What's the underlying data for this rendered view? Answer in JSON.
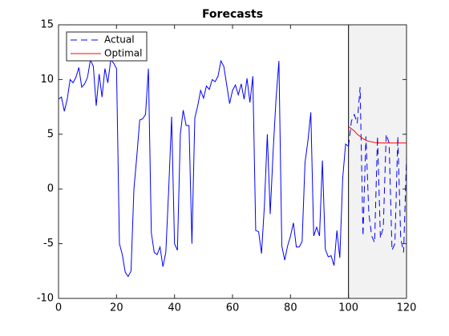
{
  "chart_data": {
    "type": "line",
    "title": "Forecasts",
    "x": [
      0,
      1,
      2,
      3,
      4,
      5,
      6,
      7,
      8,
      9,
      10,
      11,
      12,
      13,
      14,
      15,
      16,
      17,
      18,
      19,
      20,
      21,
      22,
      23,
      24,
      25,
      26,
      27,
      28,
      29,
      30,
      31,
      32,
      33,
      34,
      35,
      36,
      37,
      38,
      39,
      40,
      41,
      42,
      43,
      44,
      45,
      46,
      47,
      48,
      49,
      50,
      51,
      52,
      53,
      54,
      55,
      56,
      57,
      58,
      59,
      60,
      61,
      62,
      63,
      64,
      65,
      66,
      67,
      68,
      69,
      70,
      71,
      72,
      73,
      74,
      75,
      76,
      77,
      78,
      79,
      80,
      81,
      82,
      83,
      84,
      85,
      86,
      87,
      88,
      89,
      90,
      91,
      92,
      93,
      94,
      95,
      96,
      97,
      98,
      99,
      100,
      101,
      102,
      103,
      104,
      105,
      106,
      107,
      108,
      109,
      110,
      111,
      112,
      113,
      114,
      115,
      116,
      117,
      118,
      119,
      120
    ],
    "series": [
      {
        "name": "Actual",
        "color": "#0000ff",
        "dash": "8,5",
        "values": [
          8.2,
          8.4,
          7.1,
          8.2,
          10,
          9.7,
          10.2,
          11.1,
          9.3,
          9.6,
          10.2,
          11.8,
          11.2,
          7.6,
          10.5,
          8.4,
          11,
          9.7,
          11.8,
          11.5,
          11,
          -5,
          -6,
          -7.6,
          -8,
          -7.5,
          0,
          3,
          6.3,
          6.4,
          6.8,
          11,
          -4,
          -5.8,
          -6,
          -5.3,
          -7.1,
          -5.8,
          0,
          6.6,
          -5,
          -5.6,
          5,
          7.2,
          5.8,
          5.8,
          -5,
          6.5,
          7.6,
          9,
          8.3,
          9.4,
          9.1,
          10,
          9.8,
          10.3,
          11.7,
          11.2,
          9.5,
          7.8,
          9,
          9.5,
          8.6,
          9.6,
          8.2,
          10.1,
          7.9,
          10.3,
          -3.8,
          -3.9,
          -5.9,
          -1.5,
          5,
          -2.3,
          3.4,
          8.2,
          11.7,
          -5.2,
          -6.5,
          -5.2,
          -4.3,
          -3.1,
          -5.3,
          -5.3,
          -4.8,
          2.4,
          4.4,
          7,
          -4.3,
          -3.5,
          -4.3,
          2.6,
          -5.5,
          -6.2,
          -6.1,
          -7,
          -3.8,
          -6.3,
          1,
          4.1,
          3.9,
          6.2,
          6.8,
          6,
          9.3,
          -4.3,
          4.8,
          -2.2,
          -4.3,
          -4.9,
          4.8,
          -4.5,
          -3.5,
          5,
          4.2,
          -5.6,
          -5,
          4.8,
          -4.5,
          -5.8,
          2.9
        ]
      },
      {
        "name": "Optimal",
        "color": "#ff0000",
        "x": [
          100,
          101,
          102,
          103,
          104,
          105,
          106,
          107,
          108,
          109,
          110,
          111,
          112,
          113,
          114,
          115,
          116,
          117,
          118,
          119,
          120
        ],
        "values": [
          5.7,
          5.5,
          5.3,
          5.0,
          4.8,
          4.6,
          4.45,
          4.35,
          4.3,
          4.25,
          4.22,
          4.2,
          4.2,
          4.2,
          4.2,
          4.2,
          4.2,
          4.2,
          4.2,
          4.2,
          4.2
        ]
      }
    ],
    "shaded_region": [
      100,
      120
    ],
    "shade_color": "#f2f2f2",
    "xlim": [
      0,
      120
    ],
    "xticks": [
      0,
      20,
      40,
      60,
      80,
      100,
      120
    ],
    "ylim": [
      -10,
      15
    ],
    "yticks": [
      -10,
      -5,
      0,
      5,
      10,
      15
    ],
    "legend": "upper left"
  }
}
